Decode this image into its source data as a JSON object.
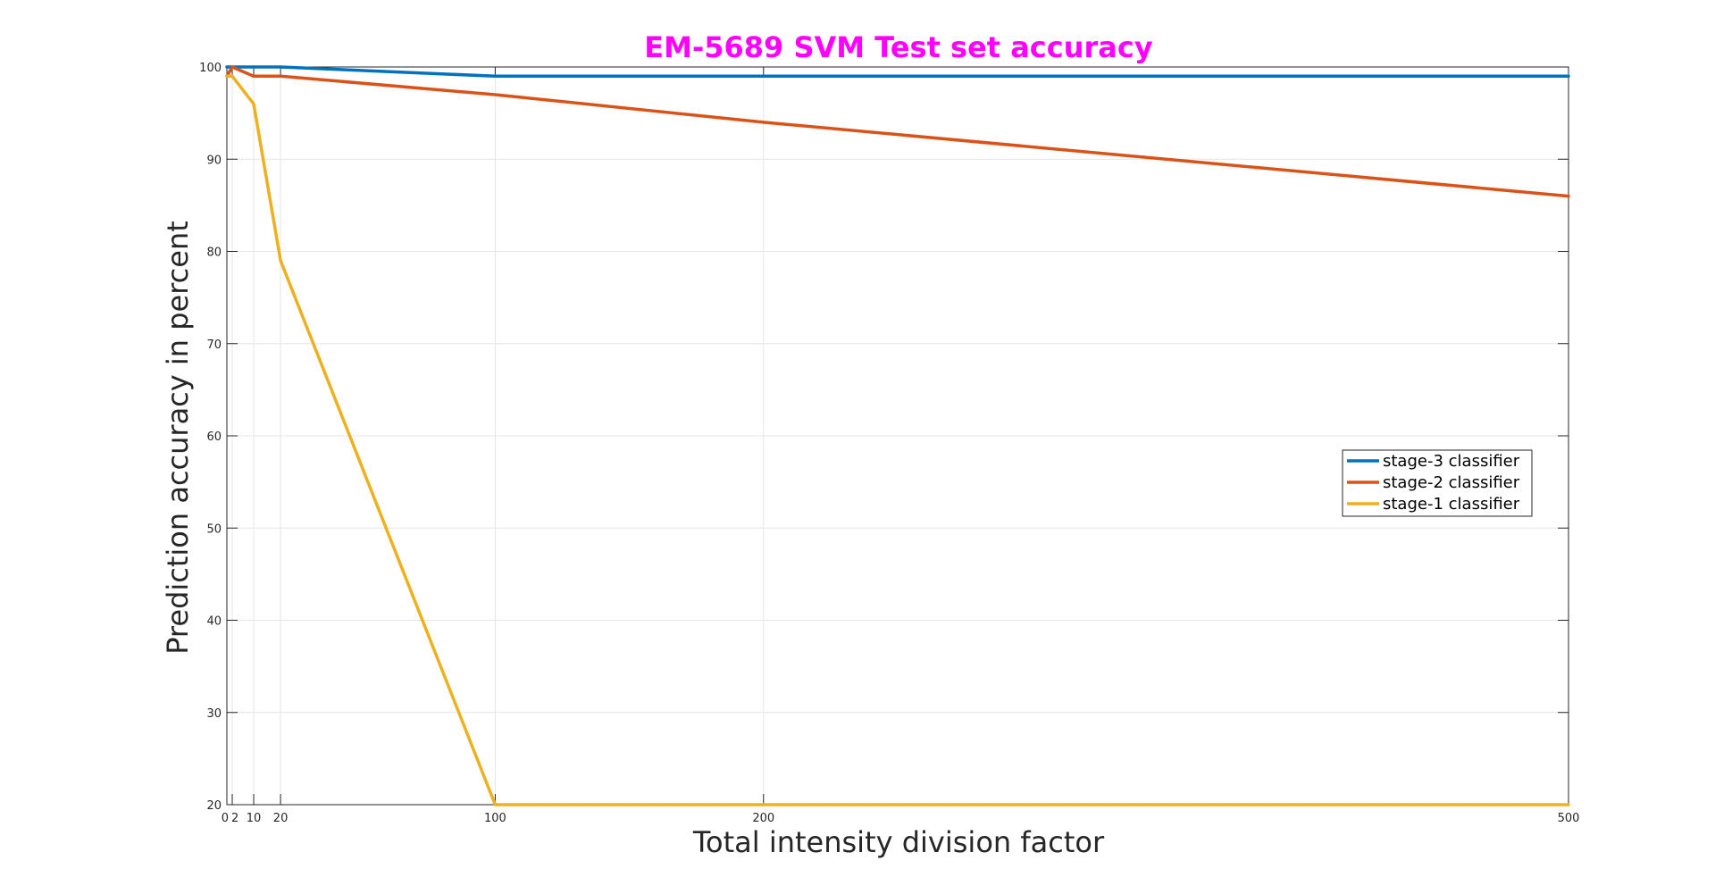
{
  "chart_data": {
    "type": "line",
    "title": "EM-5689 SVM Test set accuracy",
    "title_color": "#ff00ff",
    "xlabel": "Total intensity division factor",
    "ylabel": "Prediction accuracy in percent",
    "xlim": [
      0,
      500
    ],
    "ylim": [
      20,
      100
    ],
    "xticks": [
      0,
      2,
      10,
      20,
      100,
      200,
      500
    ],
    "xtick_labels": [
      "0",
      "2",
      "10",
      "20",
      "100",
      "200",
      "500"
    ],
    "yticks": [
      20,
      30,
      40,
      50,
      60,
      70,
      80,
      90,
      100
    ],
    "ytick_labels": [
      "20",
      "30",
      "40",
      "50",
      "60",
      "70",
      "80",
      "90",
      "100"
    ],
    "grid": true,
    "legend_position": "right",
    "x": [
      0,
      2,
      10,
      20,
      100,
      200,
      500
    ],
    "series": [
      {
        "name": "stage-3 classifier",
        "color": "#0072bd",
        "values": [
          100,
          100,
          100,
          100,
          99,
          99,
          99
        ]
      },
      {
        "name": "stage-2 classifier",
        "color": "#d95319",
        "values": [
          99,
          100,
          99,
          99,
          97,
          94,
          86
        ]
      },
      {
        "name": "stage-1 classifier",
        "color": "#edb120",
        "values": [
          99,
          99,
          96,
          79,
          20,
          20,
          20
        ]
      }
    ]
  }
}
